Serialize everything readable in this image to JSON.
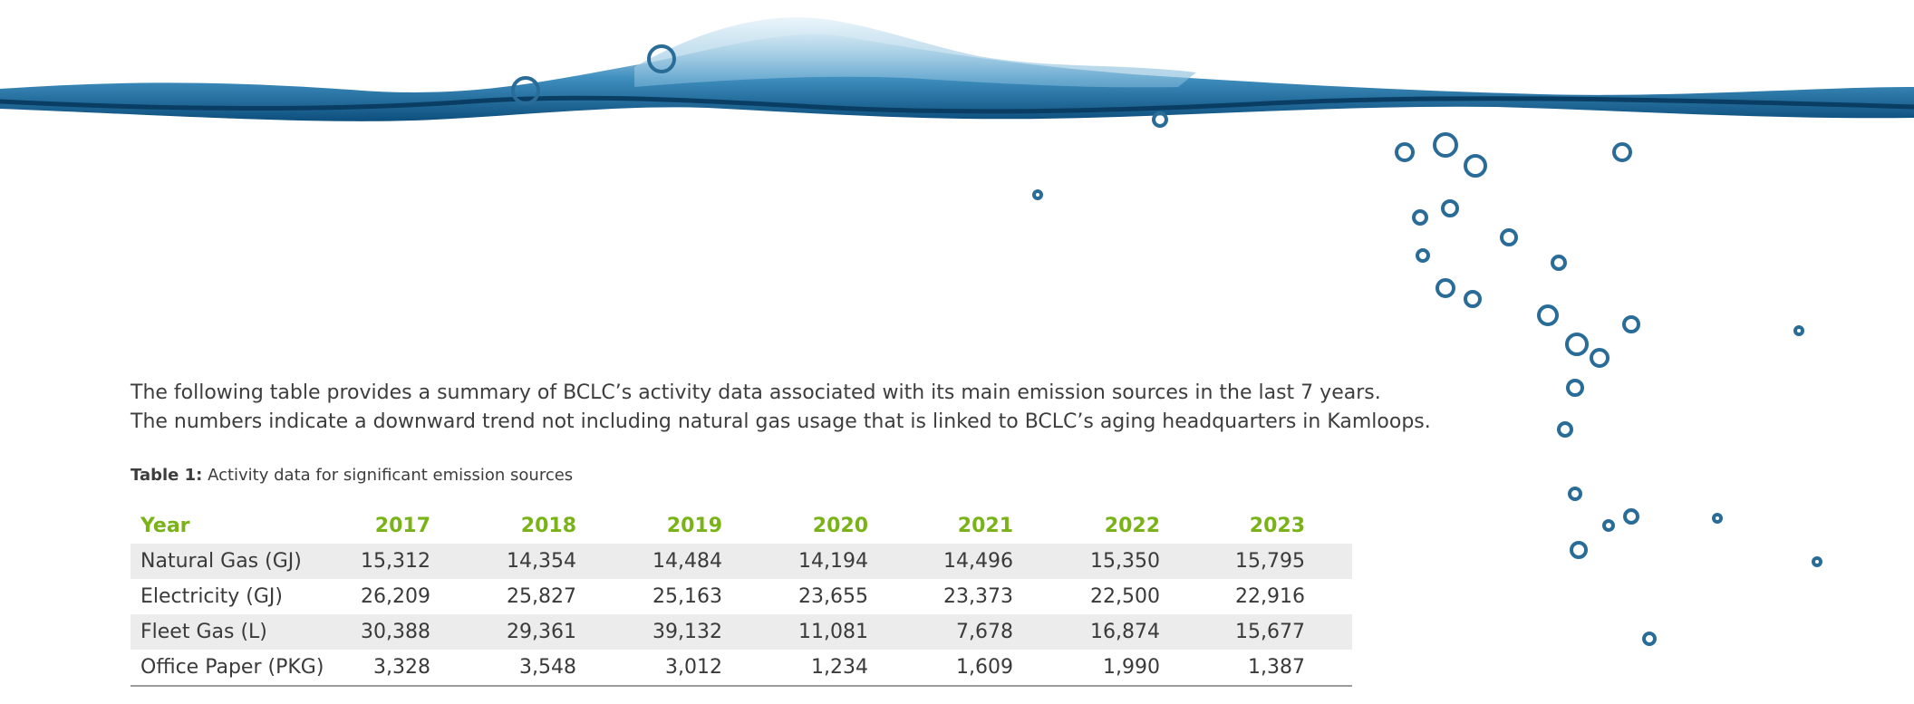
{
  "paragraph": [
    "The following table provides a summary of BCLC’s activity data associated with its main emission sources in the last 7 years.",
    "The numbers indicate a downward trend not including natural gas usage that is linked to BCLC’s aging headquarters in Kamloops."
  ],
  "caption": {
    "label": "Table 1:",
    "text": " Activity data for significant emission sources"
  },
  "table": {
    "header": [
      "Year",
      "2017",
      "2018",
      "2019",
      "2020",
      "2021",
      "2022",
      "2023"
    ],
    "rows": [
      [
        "Natural Gas (GJ)",
        "15,312",
        "14,354",
        "14,484",
        "14,194",
        "14,496",
        "15,350",
        "15,795"
      ],
      [
        "Electricity (GJ)",
        "26,209",
        "25,827",
        "25,163",
        "23,655",
        "23,373",
        "22,500",
        "22,916"
      ],
      [
        "Fleet Gas (L)",
        "30,388",
        "29,361",
        "39,132",
        "11,081",
        "7,678",
        "16,874",
        "15,677"
      ],
      [
        "Office Paper (PKG)",
        "3,328",
        "3,548",
        "3,012",
        "1,234",
        "1,609",
        "1,990",
        "1,387"
      ]
    ]
  }
}
